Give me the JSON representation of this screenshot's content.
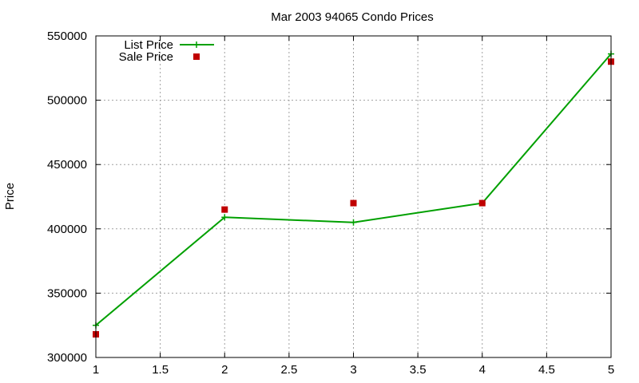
{
  "chart_data": {
    "type": "line",
    "title": "Mar 2003 94065 Condo Prices",
    "xlabel": "",
    "ylabel": "Price",
    "x": [
      1,
      2,
      3,
      4,
      5
    ],
    "xlim": [
      1,
      5
    ],
    "ylim": [
      300000,
      550000
    ],
    "x_ticks": [
      "1",
      "1.5",
      "2",
      "2.5",
      "3",
      "3.5",
      "4",
      "4.5",
      "5"
    ],
    "y_ticks": [
      "300000",
      "350000",
      "400000",
      "450000",
      "500000",
      "550000"
    ],
    "grid": true,
    "legend_position": "top-left",
    "series": [
      {
        "name": "List Price",
        "type": "line",
        "color": "#00a000",
        "marker": "plus",
        "values": [
          325000,
          409000,
          405000,
          420000,
          536000
        ]
      },
      {
        "name": "Sale Price",
        "type": "scatter",
        "color": "#c00000",
        "marker": "square",
        "values": [
          318000,
          415000,
          420000,
          420000,
          530000
        ]
      }
    ]
  }
}
